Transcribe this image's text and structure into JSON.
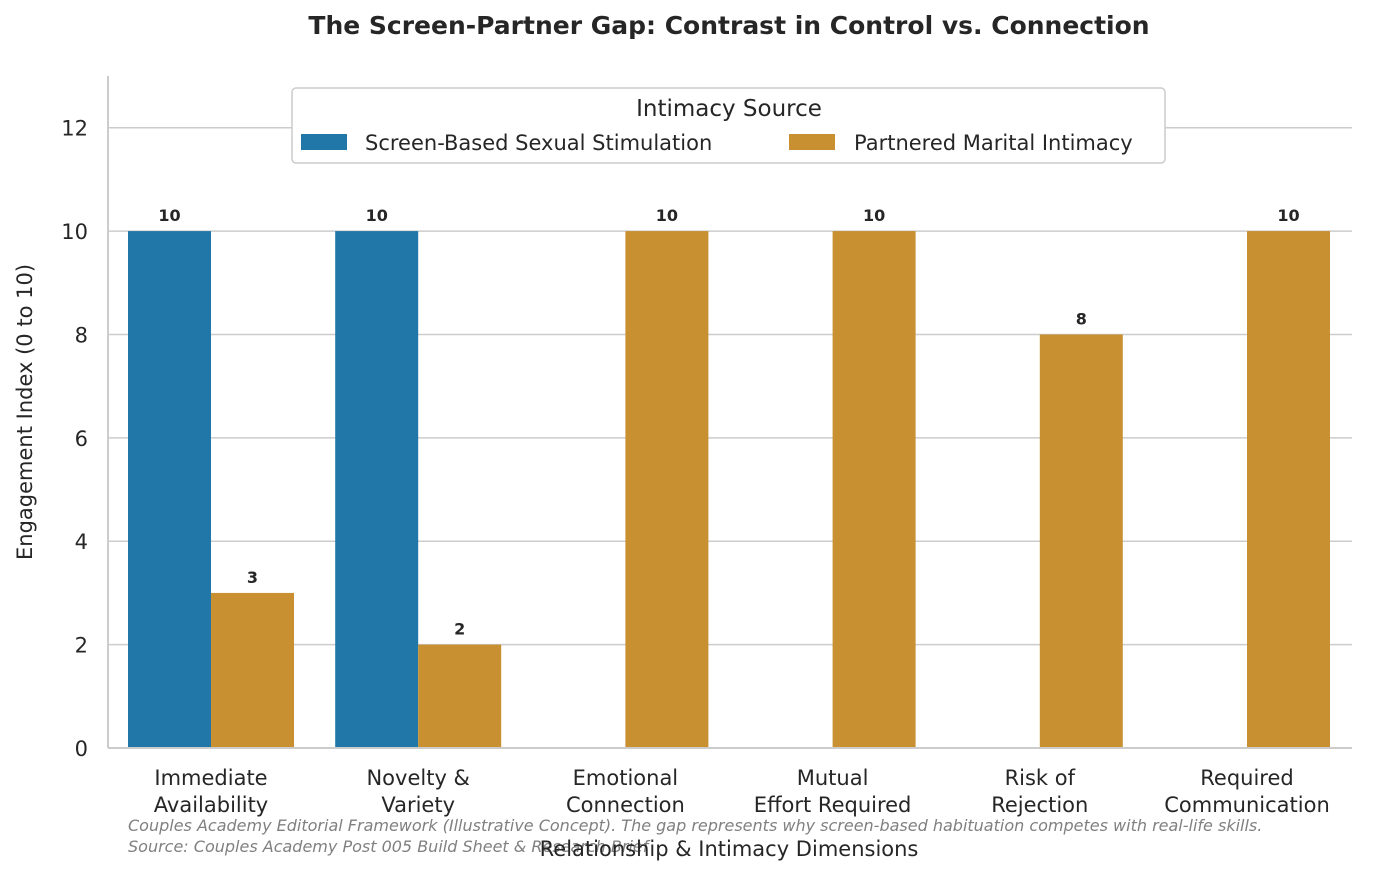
{
  "chart_data": {
    "type": "bar",
    "title": "The Screen-Partner Gap: Contrast in Control vs. Connection",
    "xlabel": "Relationship & Intimacy Dimensions",
    "ylabel": "Engagement Index (0 to 10)",
    "ylim": [
      0,
      13
    ],
    "yticks": [
      0,
      2,
      4,
      6,
      8,
      10,
      12
    ],
    "grid": "horizontal",
    "legend": {
      "title": "Intimacy Source",
      "placement": "top-center"
    },
    "categories": [
      [
        "Immediate",
        "Availability"
      ],
      [
        "Novelty &",
        "Variety"
      ],
      [
        "Emotional",
        "Connection"
      ],
      [
        "Mutual",
        "Effort Required"
      ],
      [
        "Risk of",
        "Rejection"
      ],
      [
        "Required",
        "Communication"
      ]
    ],
    "series": [
      {
        "name": "Screen-Based Sexual Stimulation",
        "color": "#2077a8",
        "values": [
          10,
          10,
          0,
          0,
          0,
          0
        ],
        "labels": [
          "10",
          "10",
          "",
          "",
          "",
          ""
        ]
      },
      {
        "name": "Partnered Marital Intimacy",
        "color": "#c89030",
        "values": [
          3,
          2,
          10,
          10,
          8,
          10
        ],
        "labels": [
          "3",
          "2",
          "10",
          "10",
          "8",
          "10"
        ]
      }
    ],
    "footnotes": [
      "Couples Academy Editorial Framework (Illustrative Concept). The gap represents why screen-based habituation competes with real-life skills.",
      "Source: Couples Academy Post 005 Build Sheet & Research Brief"
    ]
  }
}
